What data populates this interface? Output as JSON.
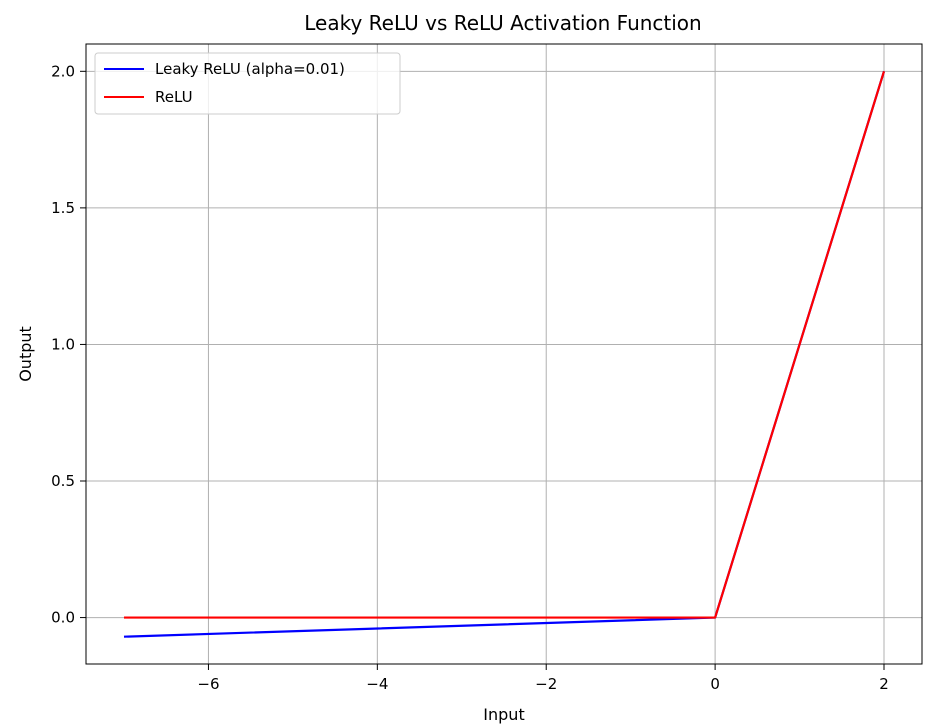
{
  "chart_data": {
    "type": "line",
    "title": "Leaky ReLU vs ReLU Activation Function",
    "xlabel": "Input",
    "ylabel": "Output",
    "xlim": [
      -7.45,
      2.45
    ],
    "ylim": [
      -0.17,
      2.1
    ],
    "xticks": [
      -6,
      -4,
      -2,
      0,
      2
    ],
    "xtick_labels": [
      "−6",
      "−4",
      "−2",
      "0",
      "2"
    ],
    "yticks": [
      0.0,
      0.5,
      1.0,
      1.5,
      2.0
    ],
    "ytick_labels": [
      "0.0",
      "0.5",
      "1.0",
      "1.5",
      "2.0"
    ],
    "grid": true,
    "legend_position": "upper-left",
    "series": [
      {
        "name": "Leaky ReLU (alpha=0.01)",
        "color": "#0000ff",
        "x": [
          -7,
          0,
          2
        ],
        "y": [
          -0.07,
          0,
          2
        ]
      },
      {
        "name": "ReLU",
        "color": "#ff0000",
        "x": [
          -7,
          0,
          2
        ],
        "y": [
          0,
          0,
          2
        ]
      }
    ]
  }
}
